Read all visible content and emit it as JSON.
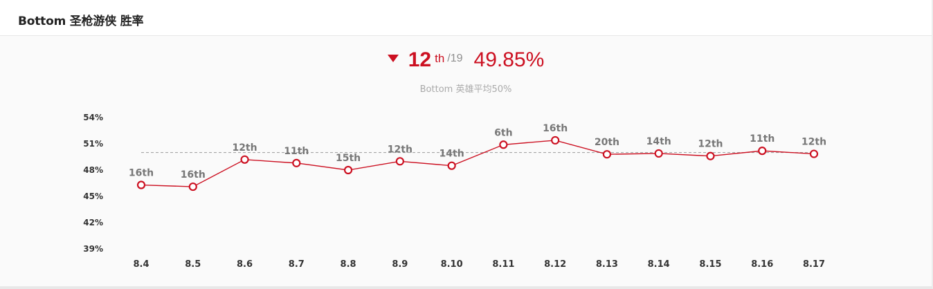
{
  "header": {
    "title": "Bottom 圣枪游侠 胜率"
  },
  "summary": {
    "trend_icon": "triangle-down-icon",
    "rank": "12",
    "rank_suffix": "th",
    "rank_total": "/19",
    "winrate": "49.85%",
    "average_label": "Bottom 英雄平均50%"
  },
  "colors": {
    "accent": "#cc1021",
    "line": "#cc1021",
    "average_line": "#999999",
    "muted_text": "#aaaaaa"
  },
  "chart_data": {
    "type": "line",
    "title": "",
    "xlabel": "",
    "ylabel": "",
    "categories": [
      "8.4",
      "8.5",
      "8.6",
      "8.7",
      "8.8",
      "8.9",
      "8.10",
      "8.11",
      "8.12",
      "8.13",
      "8.14",
      "8.15",
      "8.16",
      "8.17"
    ],
    "y_ticks": [
      "54%",
      "51%",
      "48%",
      "45%",
      "42%",
      "39%"
    ],
    "ylim": [
      39,
      54
    ],
    "average": 50,
    "grid": false,
    "series": [
      {
        "values": [
          46.3,
          46.1,
          49.2,
          48.8,
          48.0,
          49.0,
          48.5,
          50.9,
          51.4,
          49.8,
          49.9,
          49.6,
          50.2,
          49.85
        ],
        "labels": [
          "16th",
          "16th",
          "12th",
          "11th",
          "15th",
          "12th",
          "14th",
          "6th",
          "16th",
          "20th",
          "14th",
          "12th",
          "11th",
          "12th"
        ]
      }
    ]
  }
}
